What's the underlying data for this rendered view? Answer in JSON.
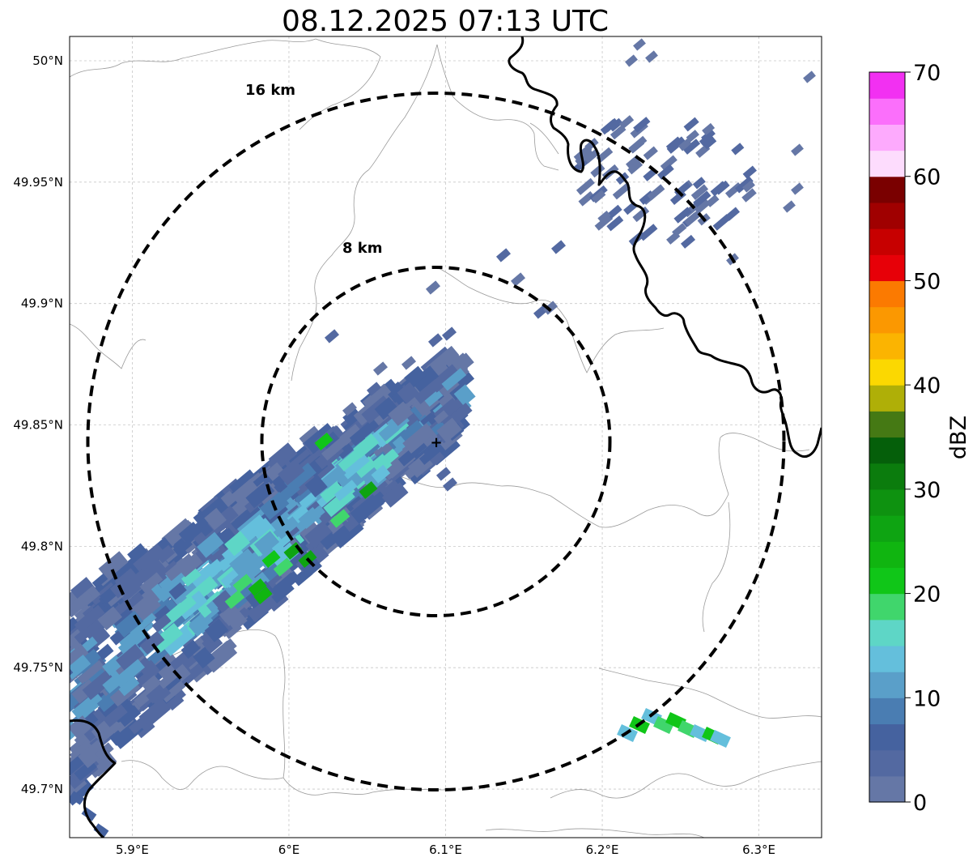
{
  "title": "08.12.2025 07:13 UTC",
  "map": {
    "lon_range": [
      5.86,
      6.34
    ],
    "lat_range": [
      49.68,
      50.01
    ],
    "lon_ticks": [
      {
        "value": 5.9,
        "label": "5.9°E"
      },
      {
        "value": 6.0,
        "label": "6°E"
      },
      {
        "value": 6.1,
        "label": "6.1°E"
      },
      {
        "value": 6.2,
        "label": "6.2°E"
      },
      {
        "value": 6.3,
        "label": "6.3°E"
      }
    ],
    "lat_ticks": [
      {
        "value": 50.0,
        "label": "50°N"
      },
      {
        "value": 49.95,
        "label": "49.95°N"
      },
      {
        "value": 49.9,
        "label": "49.9°N"
      },
      {
        "value": 49.85,
        "label": "49.85°N"
      },
      {
        "value": 49.8,
        "label": "49.8°N"
      },
      {
        "value": 49.75,
        "label": "49.75°N"
      },
      {
        "value": 49.7,
        "label": "49.7°N"
      }
    ],
    "grid": true,
    "center_marker": {
      "lon": 6.094,
      "lat": 49.843,
      "symbol": "+"
    },
    "rings": [
      {
        "label": "8 km",
        "radius_km": 8
      },
      {
        "label": "16 km",
        "radius_km": 16
      }
    ]
  },
  "colorbar": {
    "label": "dBZ",
    "ticks": [
      "0",
      "10",
      "20",
      "30",
      "40",
      "50",
      "60",
      "70"
    ],
    "colors": [
      "#6577a6",
      "#5369a1",
      "#45629f",
      "#4a7db2",
      "#5a9fc9",
      "#64bfdc",
      "#5ed6c6",
      "#40d66c",
      "#10c618",
      "#10b510",
      "#0ea412",
      "#0e9210",
      "#0b7c0d",
      "#055f0a",
      "#457914",
      "#afaf07",
      "#fbd801",
      "#fbb401",
      "#fb9801",
      "#fb7a01",
      "#e70008",
      "#c70000",
      "#a00000",
      "#7a0000",
      "#fddcfd",
      "#fdaafd",
      "#fb6ffb",
      "#f230f2"
    ]
  },
  "colors": {
    "border": "#000000",
    "admin_lines": "#9a9a9a",
    "grid": "#c8c8c8"
  }
}
